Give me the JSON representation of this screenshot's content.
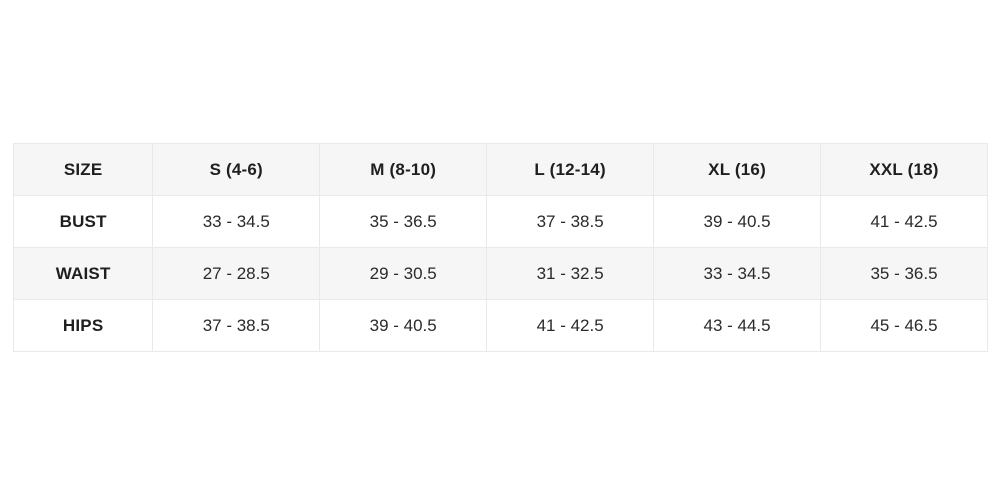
{
  "colors": {
    "stripe_background": "#f6f6f6",
    "row_background": "#ffffff",
    "border": "#e9e9e9",
    "text": "#1f1f1f"
  },
  "chart_data": {
    "type": "table",
    "title": "",
    "columns": [
      "SIZE",
      "S (4-6)",
      "M (8-10)",
      "L (12-14)",
      "XL (16)",
      "XXL (18)"
    ],
    "rows": [
      {
        "label": "BUST",
        "values": [
          "33 - 34.5",
          "35 - 36.5",
          "37 - 38.5",
          "39 - 40.5",
          "41 - 42.5"
        ]
      },
      {
        "label": "WAIST",
        "values": [
          "27 - 28.5",
          "29 - 30.5",
          "31 - 32.5",
          "33 - 34.5",
          "35 - 36.5"
        ]
      },
      {
        "label": "HIPS",
        "values": [
          "37 - 38.5",
          "39 - 40.5",
          "41 - 42.5",
          "43 - 44.5",
          "45 - 46.5"
        ]
      }
    ]
  }
}
